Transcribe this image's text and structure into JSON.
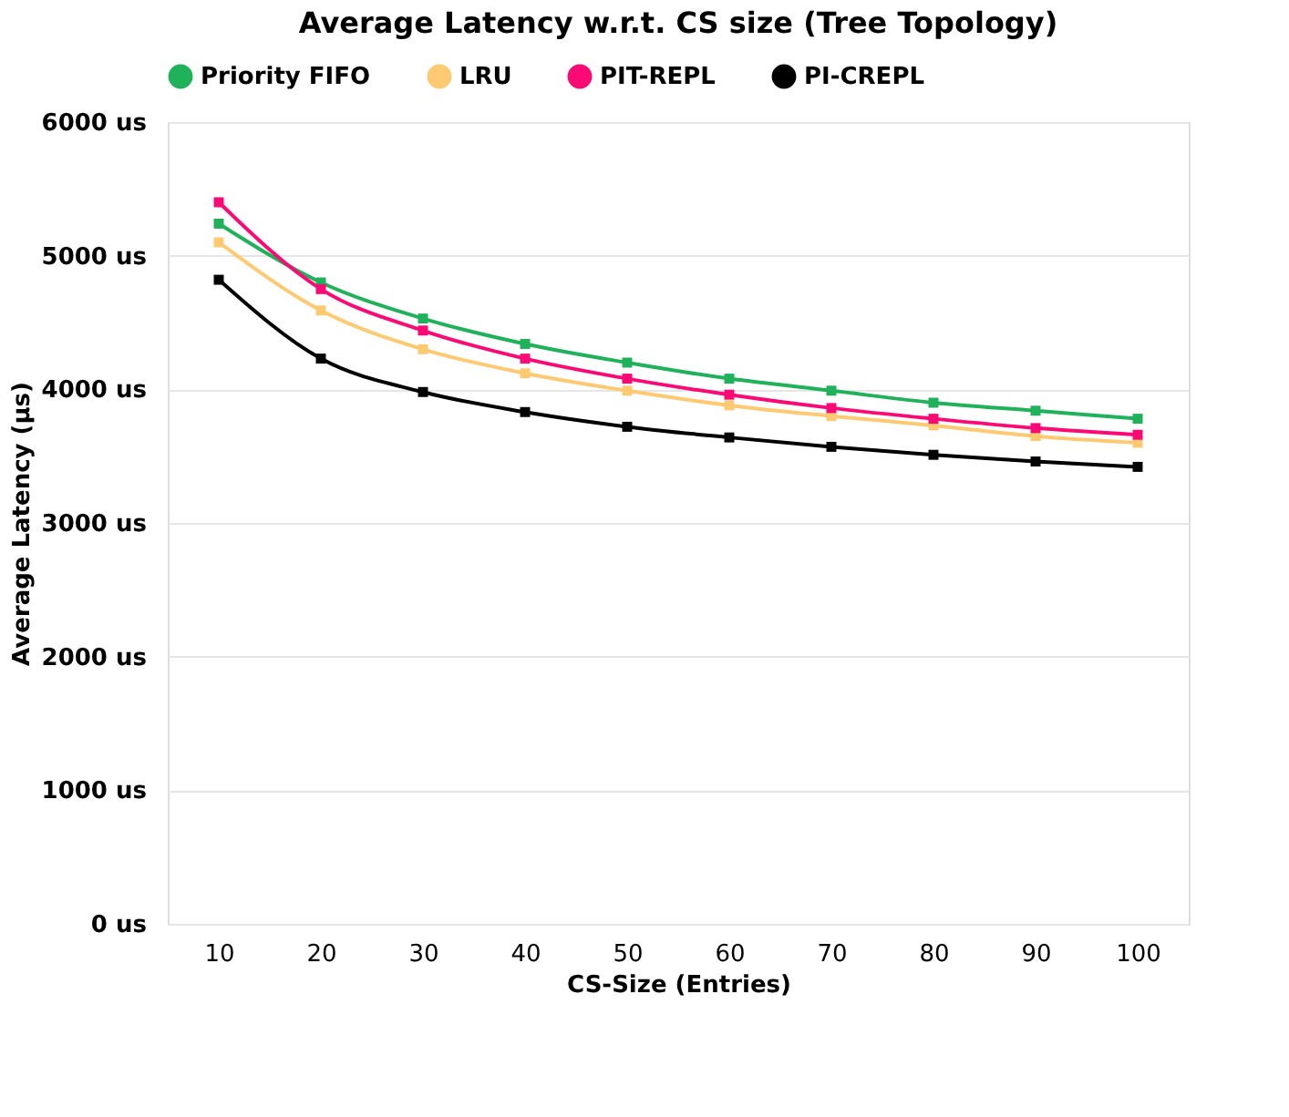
{
  "chart_data": {
    "type": "line",
    "title": "Average Latency w.r.t. CS size (Tree Topology)",
    "xlabel": "CS-Size (Entries)",
    "ylabel": "Average Latency (µs)",
    "categories": [
      "10",
      "20",
      "30",
      "40",
      "50",
      "60",
      "70",
      "80",
      "90",
      "100"
    ],
    "series": [
      {
        "name": "Priority FIFO",
        "color": "#1fb25a",
        "values": [
          5240,
          4800,
          4530,
          4340,
          4200,
          4080,
          3990,
          3900,
          3840,
          3780
        ]
      },
      {
        "name": "LRU",
        "color": "#fdc971",
        "values": [
          5100,
          4590,
          4300,
          4120,
          3990,
          3880,
          3800,
          3730,
          3650,
          3600
        ]
      },
      {
        "name": "PIT-REPL",
        "color": "#fb0a76",
        "values": [
          5400,
          4750,
          4440,
          4230,
          4080,
          3960,
          3860,
          3780,
          3710,
          3660
        ]
      },
      {
        "name": "PI-CREPL",
        "color": "#000000",
        "values": [
          4820,
          4230,
          3980,
          3830,
          3720,
          3640,
          3570,
          3510,
          3460,
          3420
        ]
      }
    ],
    "ylim": [
      0,
      6000
    ],
    "yticks": [
      {
        "value": 0,
        "label": "0 us"
      },
      {
        "value": 1000,
        "label": "1000 us"
      },
      {
        "value": 2000,
        "label": "2000 us"
      },
      {
        "value": 3000,
        "label": "3000 us"
      },
      {
        "value": 4000,
        "label": "4000 us"
      },
      {
        "value": 5000,
        "label": "5000 us"
      },
      {
        "value": 6000,
        "label": "6000 us"
      }
    ],
    "grid": "y",
    "legend": "top",
    "marker": "square",
    "line_style": "solid"
  }
}
